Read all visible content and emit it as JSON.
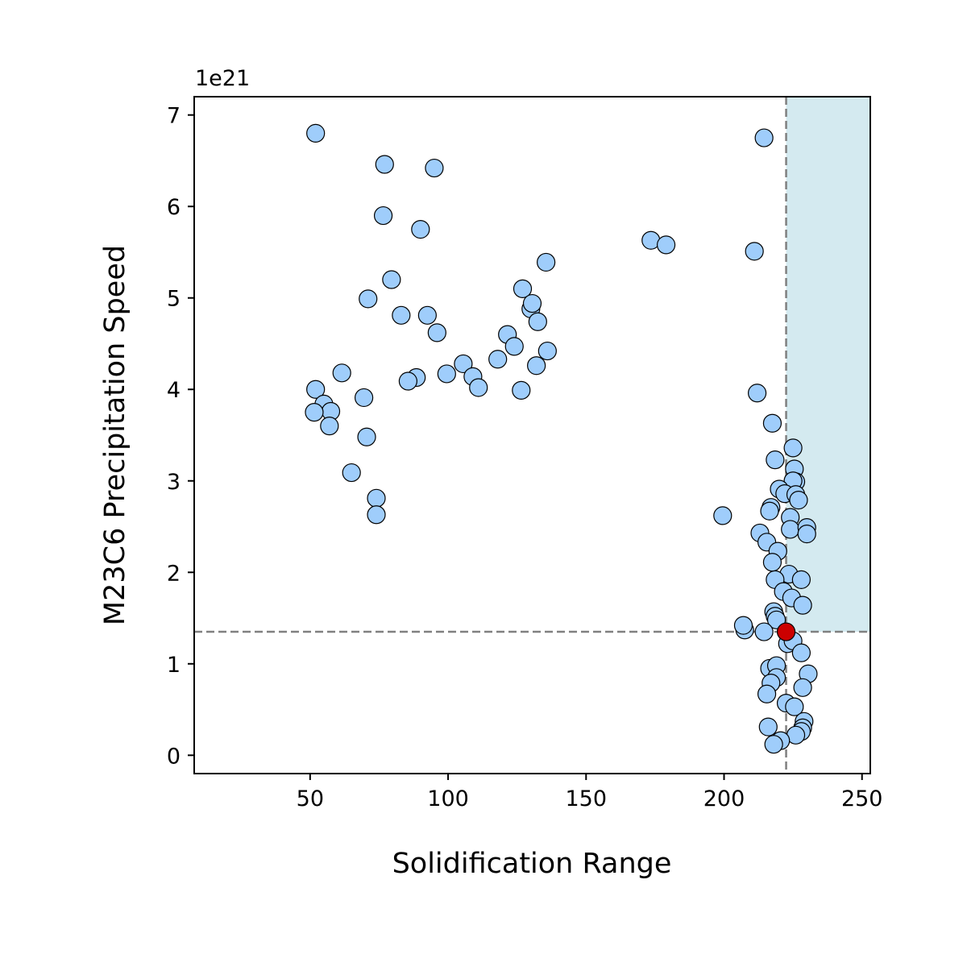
{
  "chart_data": {
    "type": "scatter",
    "xlabel": "Solidification Range",
    "ylabel": "M23C6 Precipitation Speed",
    "y_offset_text": "1e21",
    "xlim": [
      8,
      253
    ],
    "ylim": [
      -0.2,
      7.2
    ],
    "xticks": [
      50,
      100,
      150,
      200,
      250
    ],
    "xtick_labels": [
      "50",
      "100",
      "150",
      "200",
      "250"
    ],
    "yticks": [
      0,
      1,
      2,
      3,
      4,
      5,
      6,
      7
    ],
    "ytick_labels": [
      "0",
      "1",
      "2",
      "3",
      "4",
      "5",
      "6",
      "7"
    ],
    "grid": false,
    "colors": {
      "point_fill": "#9fcdfb",
      "point_edge": "#000000",
      "highlight_fill": "#cc0000",
      "region_fill": "#d4eaf0",
      "guide_line": "#808080"
    },
    "threshold": {
      "x": 222.5,
      "y": 1.35
    },
    "shaded_region": {
      "x_from": 222.5,
      "y_from": 1.35
    },
    "highlight_point": {
      "x": 222.5,
      "y": 1.35
    },
    "series": [
      {
        "points": [
          [
            52,
            6.8
          ],
          [
            77,
            6.46
          ],
          [
            95,
            6.42
          ],
          [
            214.5,
            6.75
          ],
          [
            76.5,
            5.9
          ],
          [
            90,
            5.75
          ],
          [
            173.5,
            5.63
          ],
          [
            179,
            5.58
          ],
          [
            211,
            5.51
          ],
          [
            135.5,
            5.39
          ],
          [
            79.5,
            5.2
          ],
          [
            127,
            5.1
          ],
          [
            71,
            4.99
          ],
          [
            130,
            4.88
          ],
          [
            130.5,
            4.94
          ],
          [
            83,
            4.81
          ],
          [
            92.5,
            4.81
          ],
          [
            132.5,
            4.74
          ],
          [
            96,
            4.62
          ],
          [
            121.5,
            4.6
          ],
          [
            124,
            4.47
          ],
          [
            136,
            4.42
          ],
          [
            118,
            4.33
          ],
          [
            105.5,
            4.28
          ],
          [
            132,
            4.26
          ],
          [
            61.5,
            4.18
          ],
          [
            99.5,
            4.17
          ],
          [
            109,
            4.14
          ],
          [
            88.5,
            4.13
          ],
          [
            85.5,
            4.09
          ],
          [
            111,
            4.02
          ],
          [
            52,
            4.0
          ],
          [
            126.5,
            3.99
          ],
          [
            212,
            3.96
          ],
          [
            69.5,
            3.91
          ],
          [
            55,
            3.84
          ],
          [
            57.5,
            3.76
          ],
          [
            51.5,
            3.75
          ],
          [
            217.5,
            3.63
          ],
          [
            57,
            3.6
          ],
          [
            70.5,
            3.48
          ],
          [
            225,
            3.36
          ],
          [
            218.5,
            3.23
          ],
          [
            225.5,
            3.13
          ],
          [
            65,
            3.09
          ],
          [
            226,
            2.99
          ],
          [
            225,
            3.0
          ],
          [
            220,
            2.91
          ],
          [
            222,
            2.86
          ],
          [
            226,
            2.85
          ],
          [
            227,
            2.79
          ],
          [
            74,
            2.81
          ],
          [
            217,
            2.71
          ],
          [
            216.5,
            2.67
          ],
          [
            74,
            2.63
          ],
          [
            199.5,
            2.62
          ],
          [
            224,
            2.6
          ],
          [
            224,
            2.47
          ],
          [
            230,
            2.49
          ],
          [
            230,
            2.42
          ],
          [
            213,
            2.43
          ],
          [
            215.5,
            2.33
          ],
          [
            219.5,
            2.23
          ],
          [
            217.5,
            2.11
          ],
          [
            223.5,
            1.98
          ],
          [
            218.5,
            1.92
          ],
          [
            228,
            1.92
          ],
          [
            221.5,
            1.79
          ],
          [
            224.5,
            1.72
          ],
          [
            228.5,
            1.64
          ],
          [
            218,
            1.57
          ],
          [
            218.5,
            1.52
          ],
          [
            219,
            1.48
          ],
          [
            207.5,
            1.37
          ],
          [
            207,
            1.42
          ],
          [
            214.5,
            1.35
          ],
          [
            223,
            1.22
          ],
          [
            225,
            1.25
          ],
          [
            228,
            1.12
          ],
          [
            216.5,
            0.95
          ],
          [
            219,
            0.98
          ],
          [
            230.5,
            0.89
          ],
          [
            219,
            0.85
          ],
          [
            217,
            0.79
          ],
          [
            215.5,
            0.67
          ],
          [
            228.5,
            0.74
          ],
          [
            222.5,
            0.57
          ],
          [
            225.5,
            0.53
          ],
          [
            229,
            0.37
          ],
          [
            216,
            0.31
          ],
          [
            228.5,
            0.3
          ],
          [
            228,
            0.26
          ],
          [
            226,
            0.22
          ],
          [
            220.5,
            0.16
          ],
          [
            218,
            0.12
          ]
        ]
      }
    ]
  }
}
